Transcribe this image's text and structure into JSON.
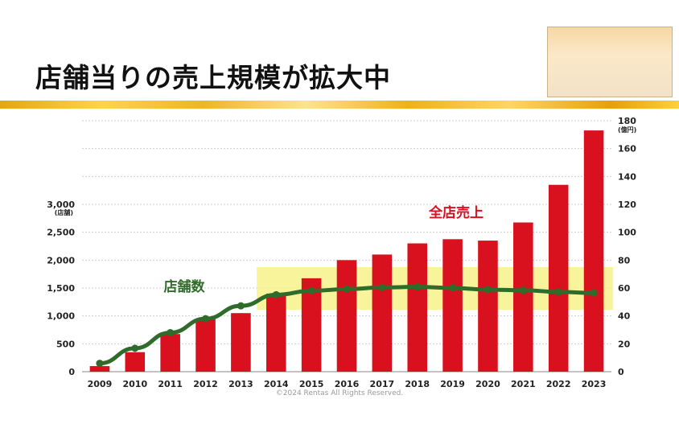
{
  "title": "店舗当りの売上規模が拡大中",
  "footer": {
    "copyright": "©2024 Rentas All Rights Reserved."
  },
  "colors": {
    "bar": "#d9101d",
    "line": "#2f6b2a",
    "highlight": "#f7f28a",
    "banner": "#f0b429"
  },
  "chart_data": {
    "type": "bar",
    "categories": [
      "2009",
      "2010",
      "2011",
      "2012",
      "2013",
      "2014",
      "2015",
      "2016",
      "2017",
      "2018",
      "2019",
      "2020",
      "2021",
      "2022",
      "2023"
    ],
    "series": [
      {
        "name": "全店売上",
        "type": "bar",
        "axis": "right",
        "values": [
          4,
          14,
          27,
          38,
          42,
          56,
          67,
          80,
          84,
          92,
          95,
          94,
          107,
          134,
          173
        ]
      },
      {
        "name": "店舗数",
        "type": "line",
        "axis": "left",
        "values": [
          150,
          420,
          700,
          950,
          1180,
          1380,
          1450,
          1480,
          1510,
          1520,
          1500,
          1470,
          1460,
          1430,
          1410
        ]
      }
    ],
    "y_left": {
      "ticks": [
        "0",
        "500",
        "1,000",
        "1,500",
        "2,000",
        "2,500",
        "3,000"
      ],
      "unit": "(店舗)",
      "range": [
        0,
        3000
      ]
    },
    "y_right": {
      "ticks": [
        "0",
        "20",
        "40",
        "60",
        "80",
        "100",
        "120",
        "140",
        "160",
        "180"
      ],
      "unit": "(億円)",
      "range": [
        0,
        180
      ]
    },
    "highlight": {
      "from": "2014",
      "to": "2023"
    },
    "grid": true
  }
}
